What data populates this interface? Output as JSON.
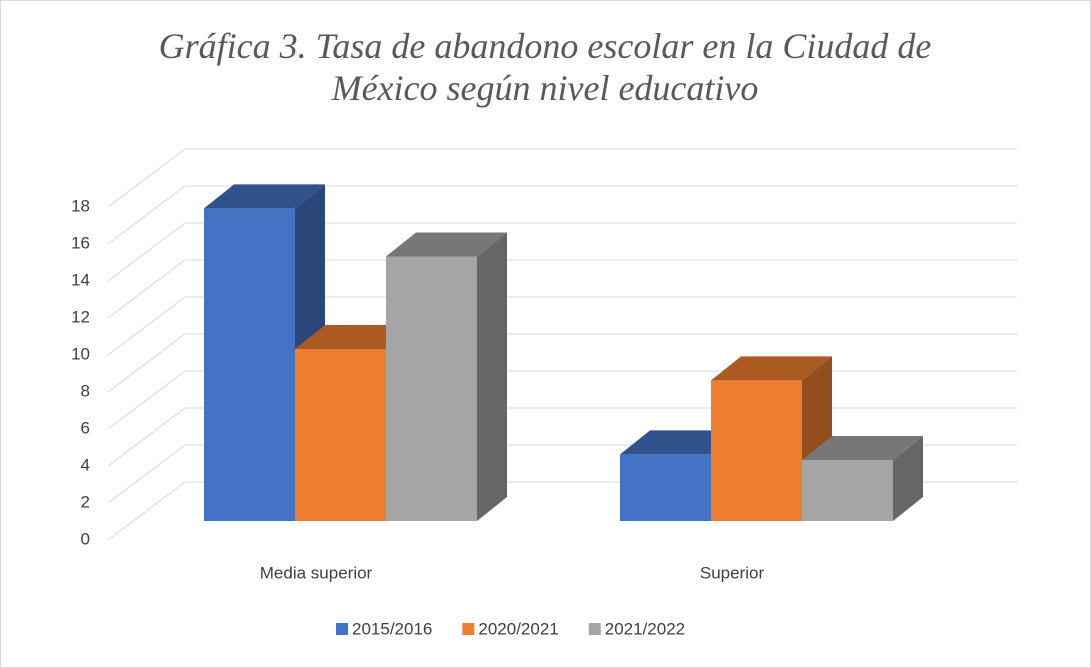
{
  "chart_data": {
    "type": "bar3d",
    "title": "Gráfica 3. Tasa de abandono escolar en la Ciudad de México según nivel educativo",
    "categories": [
      "Media superior",
      "Superior"
    ],
    "series": [
      {
        "name": "2015/2016",
        "color": "#4472c4",
        "values": [
          16.9,
          3.6
        ]
      },
      {
        "name": "2020/2021",
        "color": "#ed7d31",
        "values": [
          9.3,
          7.6
        ]
      },
      {
        "name": "2021/2022",
        "color": "#a5a5a5",
        "values": [
          14.3,
          3.3
        ]
      }
    ],
    "ylim": [
      0,
      18
    ],
    "yticks": [
      0,
      2,
      4,
      6,
      8,
      10,
      12,
      14,
      16,
      18
    ],
    "grid": true,
    "legend": "bottom"
  }
}
